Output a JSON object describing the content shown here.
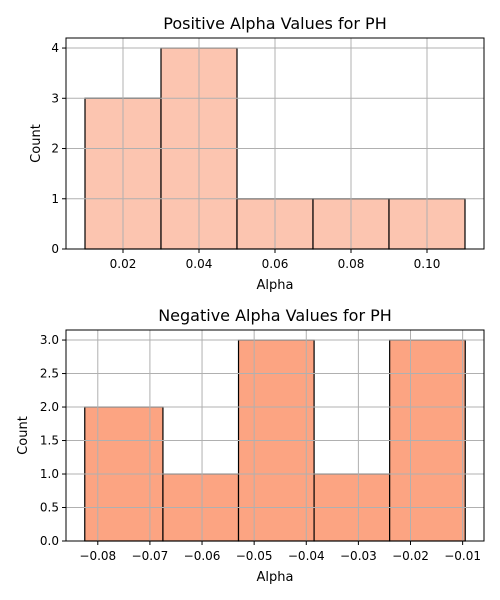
{
  "chart_data": [
    {
      "type": "bar",
      "title": "Positive Alpha Values for PH",
      "xlabel": "Alpha",
      "ylabel": "Count",
      "bins": [
        {
          "x0": 0.01,
          "x1": 0.03,
          "count": 3
        },
        {
          "x0": 0.03,
          "x1": 0.05,
          "count": 4
        },
        {
          "x0": 0.05,
          "x1": 0.07,
          "count": 1
        },
        {
          "x0": 0.07,
          "x1": 0.09,
          "count": 1
        },
        {
          "x0": 0.09,
          "x1": 0.11,
          "count": 1
        }
      ],
      "xlim": [
        0.005,
        0.115
      ],
      "ylim": [
        0,
        4.2
      ],
      "xticks": [
        0.02,
        0.04,
        0.06,
        0.08,
        0.1
      ],
      "xtick_labels": [
        "0.02",
        "0.04",
        "0.06",
        "0.08",
        "0.10"
      ],
      "yticks": [
        0,
        1,
        2,
        3,
        4
      ],
      "ytick_labels": [
        "0",
        "1",
        "2",
        "3",
        "4"
      ],
      "bar_color": "#fcc5b0",
      "grid": true
    },
    {
      "type": "bar",
      "title": "Negative Alpha Values for PH",
      "xlabel": "Alpha",
      "ylabel": "Count",
      "bins": [
        {
          "x0": -0.0825,
          "x1": -0.0675,
          "count": 2
        },
        {
          "x0": -0.0675,
          "x1": -0.053,
          "count": 1
        },
        {
          "x0": -0.053,
          "x1": -0.0385,
          "count": 3
        },
        {
          "x0": -0.0385,
          "x1": -0.024,
          "count": 1
        },
        {
          "x0": -0.024,
          "x1": -0.0095,
          "count": 3
        }
      ],
      "xlim": [
        -0.0861,
        -0.0059
      ],
      "ylim": [
        0,
        3.15
      ],
      "xticks": [
        -0.08,
        -0.07,
        -0.06,
        -0.05,
        -0.04,
        -0.03,
        -0.02,
        -0.01
      ],
      "xtick_labels": [
        "−0.08",
        "−0.07",
        "−0.06",
        "−0.05",
        "−0.04",
        "−0.03",
        "−0.02",
        "−0.01"
      ],
      "yticks": [
        0,
        0.5,
        1.0,
        1.5,
        2.0,
        2.5,
        3.0
      ],
      "ytick_labels": [
        "0.0",
        "0.5",
        "1.0",
        "1.5",
        "2.0",
        "2.5",
        "3.0"
      ],
      "bar_color": "#fca482",
      "grid": true
    }
  ]
}
